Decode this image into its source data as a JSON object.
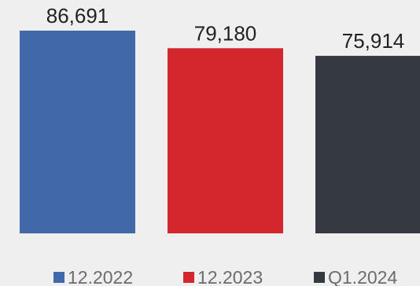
{
  "chart_data": {
    "type": "bar",
    "categories": [
      "12.2022",
      "12.2023",
      "Q1.2024"
    ],
    "series": [
      {
        "values": [
          86691,
          79180,
          75914
        ]
      }
    ],
    "value_labels": [
      "86,691",
      "79,180",
      "75,914"
    ],
    "colors": [
      "#4169aa",
      "#d3262d",
      "#353a40"
    ],
    "background": "#efefef",
    "label_color": "#222222",
    "legend_color": "#6b6b6b",
    "ylim": [
      0,
      86691
    ],
    "grid": false,
    "legend_position": "bottom",
    "x_axis_visible": false,
    "y_axis_visible": false
  }
}
